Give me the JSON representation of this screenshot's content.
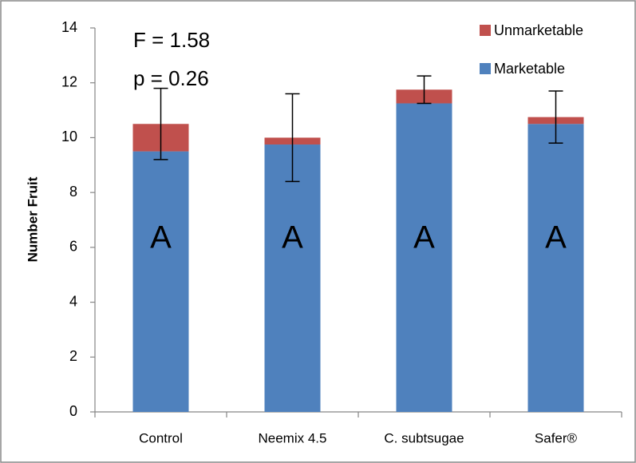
{
  "chart_data": {
    "type": "stacked_bar",
    "y_label": "Number Fruit",
    "categories": [
      "Control",
      "Neemix 4.5",
      "C. subtsugae",
      "Safer®"
    ],
    "series": [
      {
        "name": "Marketable",
        "color": "#4f81bd",
        "values": [
          9.5,
          9.75,
          11.25,
          10.5
        ]
      },
      {
        "name": "Unmarketable",
        "color": "#c0504d",
        "values": [
          1.0,
          0.25,
          0.5,
          0.25
        ]
      }
    ],
    "error": [
      1.3,
      1.6,
      0.5,
      0.95
    ],
    "annotations": [
      "F = 1.58",
      "p = 0.26"
    ],
    "group_letters": [
      "A",
      "A",
      "A",
      "A"
    ],
    "ylim": [
      0,
      14
    ],
    "yticks": [
      0,
      2,
      4,
      6,
      8,
      10,
      12,
      14
    ],
    "grid": false,
    "legend": "top-right"
  }
}
